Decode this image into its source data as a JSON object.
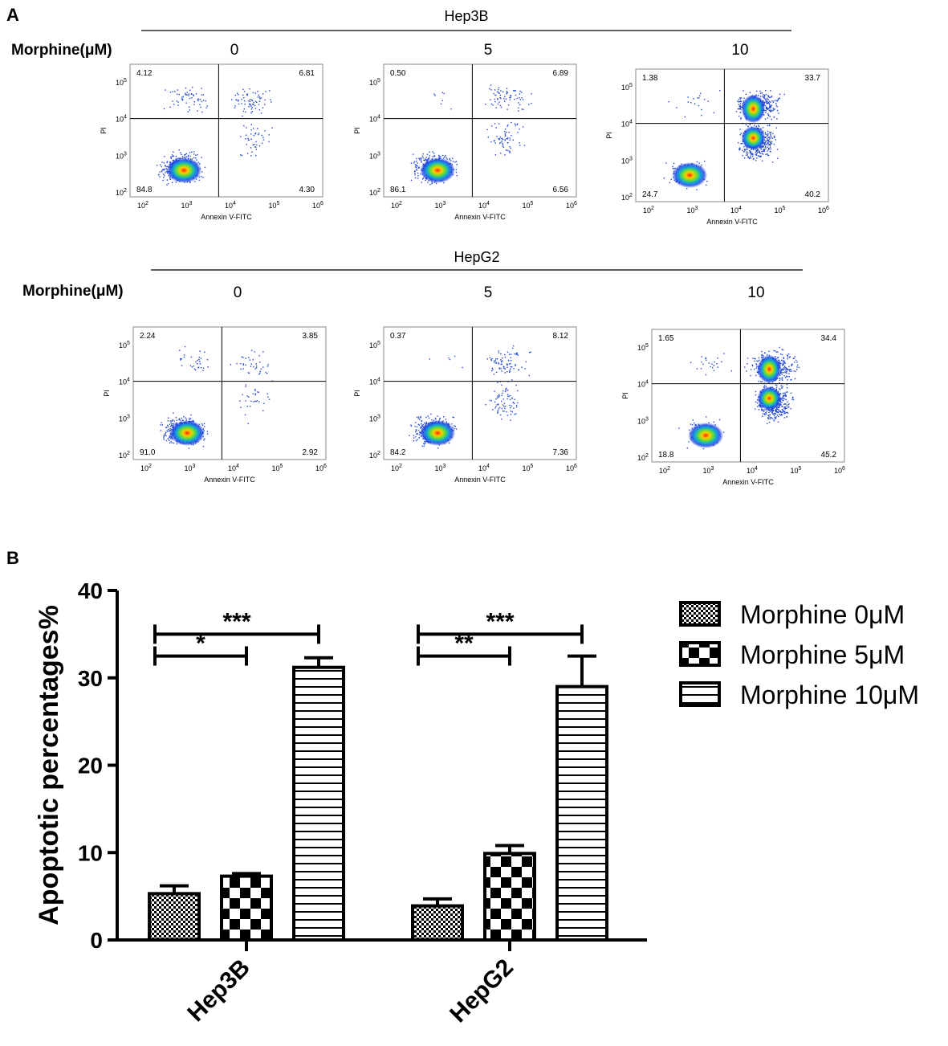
{
  "panel_a": {
    "label": "A",
    "row_label": "Morphine(μM)",
    "axis_x_label": "Annexin V-FITC",
    "axis_y_label": "PI",
    "ticks": {
      "x": [
        [
          "10",
          "2"
        ],
        [
          "10",
          "3"
        ],
        [
          "10",
          "4"
        ],
        [
          "10",
          "5"
        ],
        [
          "10",
          "6"
        ]
      ],
      "y": [
        [
          "10",
          "2"
        ],
        [
          "10",
          "3"
        ],
        [
          "10",
          "4"
        ],
        [
          "10",
          "5"
        ]
      ]
    },
    "rows": [
      {
        "cell_line": "Hep3B",
        "plots": [
          {
            "dose": "0",
            "ul": "4.12",
            "ur": "6.81",
            "ll": "84.8",
            "lr": "4.30"
          },
          {
            "dose": "5",
            "ul": "0.50",
            "ur": "6.89",
            "ll": "86.1",
            "lr": "6.56"
          },
          {
            "dose": "10",
            "ul": "1.38",
            "ur": "33.7",
            "ll": "24.7",
            "lr": "40.2"
          }
        ]
      },
      {
        "cell_line": "HepG2",
        "plots": [
          {
            "dose": "0",
            "ul": "2.24",
            "ur": "3.85",
            "ll": "91.0",
            "lr": "2.92"
          },
          {
            "dose": "5",
            "ul": "0.37",
            "ur": "8.12",
            "ll": "84.2",
            "lr": "7.36"
          },
          {
            "dose": "10",
            "ul": "1.65",
            "ur": "34.4",
            "ll": "18.8",
            "lr": "45.2"
          }
        ]
      }
    ]
  },
  "panel_b": {
    "label": "B",
    "colors": {
      "axis": "#000000",
      "bar_fill": "#ffffff"
    }
  },
  "chart_data": {
    "type": "bar",
    "title": "",
    "xlabel": "",
    "ylabel": "Apoptotic percentages%",
    "ylim": [
      0,
      40
    ],
    "yticks": [
      "0",
      "10",
      "20",
      "30",
      "40"
    ],
    "categories": [
      "Hep3B",
      "HepG2"
    ],
    "series": [
      {
        "name": "Morphine 0μM",
        "pattern": "fine-checker",
        "values": [
          5.3,
          3.9
        ],
        "errors": [
          0.9,
          0.8
        ]
      },
      {
        "name": "Morphine 5μM",
        "pattern": "coarse-checker",
        "values": [
          7.3,
          9.9
        ],
        "errors": [
          0.3,
          0.9
        ]
      },
      {
        "name": "Morphine 10μM",
        "pattern": "horizontal-lines",
        "values": [
          31.2,
          29.0
        ],
        "errors": [
          1.1,
          3.5
        ]
      }
    ],
    "significance": [
      {
        "category": "Hep3B",
        "from": "Morphine 0μM",
        "to": "Morphine 10μM",
        "label": "***",
        "level": 35
      },
      {
        "category": "Hep3B",
        "from": "Morphine 0μM",
        "to": "Morphine 5μM",
        "label": "*",
        "level": 32.5
      },
      {
        "category": "HepG2",
        "from": "Morphine 0μM",
        "to": "Morphine 10μM",
        "label": "***",
        "level": 35
      },
      {
        "category": "HepG2",
        "from": "Morphine 0μM",
        "to": "Morphine 5μM",
        "label": "**",
        "level": 32.5
      }
    ]
  }
}
